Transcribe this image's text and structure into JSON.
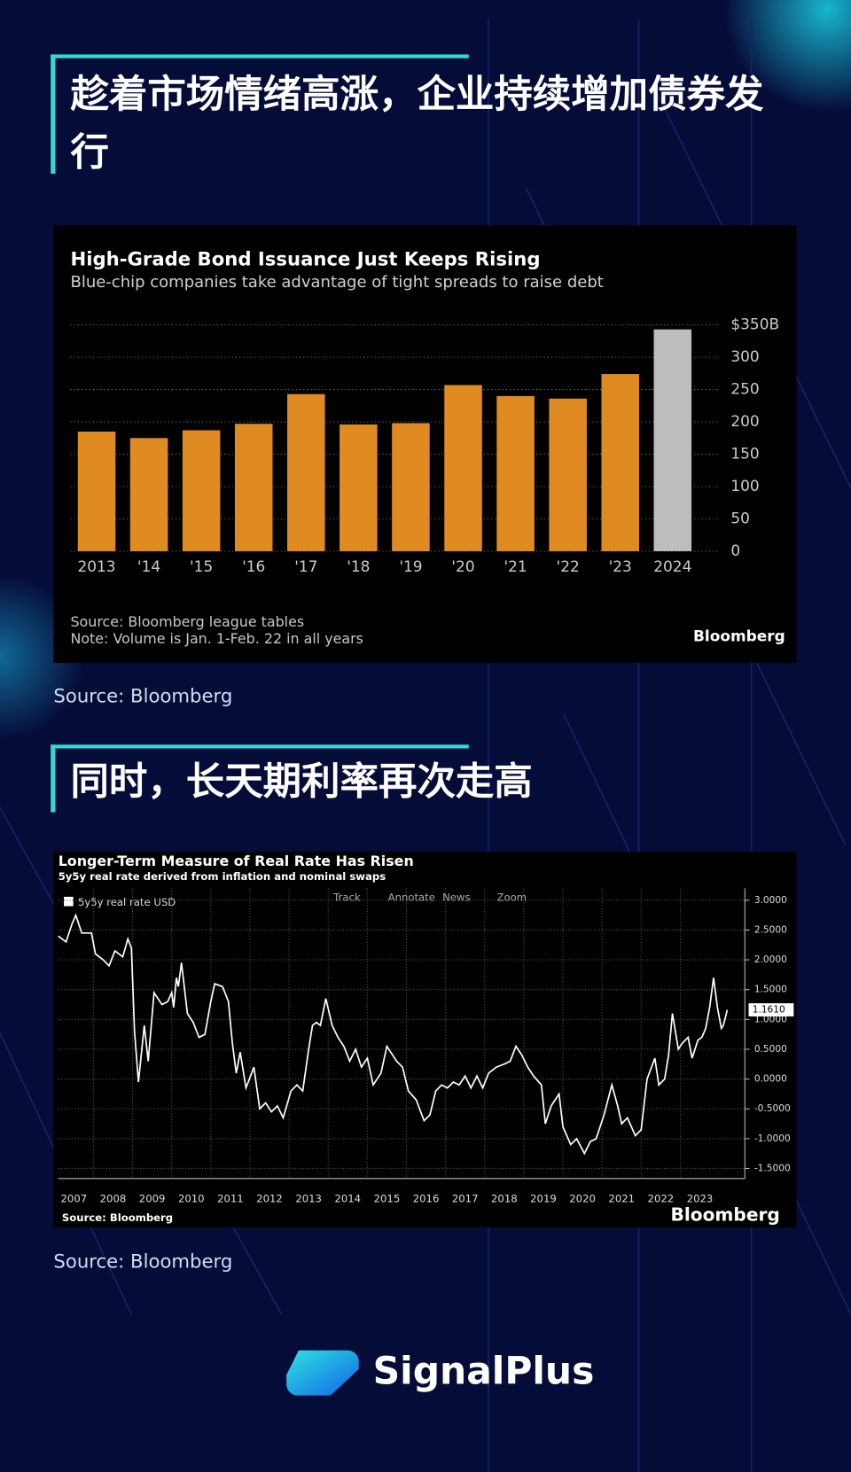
{
  "headings": [
    "趁着市场情绪高涨，企业持续增加债券发行",
    "同时，长天期利率再次走高"
  ],
  "captions": [
    "Source: Bloomberg",
    "Source: Bloomberg"
  ],
  "logo": "SignalPlus",
  "chart_data": [
    {
      "type": "bar",
      "title": "High-Grade Bond Issuance Just Keeps Rising",
      "subtitle": "Blue-chip companies take advantage of tight spreads to raise debt",
      "categories": [
        "2013",
        "'14",
        "'15",
        "'16",
        "'17",
        "'18",
        "'19",
        "'20",
        "'21",
        "'22",
        "'23",
        "2024"
      ],
      "values": [
        185,
        175,
        187,
        197,
        243,
        196,
        198,
        257,
        240,
        236,
        274,
        343
      ],
      "colors": [
        "#e08b22",
        "#e08b22",
        "#e08b22",
        "#e08b22",
        "#e08b22",
        "#e08b22",
        "#e08b22",
        "#e08b22",
        "#e08b22",
        "#e08b22",
        "#e08b22",
        "#bdbdbd"
      ],
      "ylim": [
        0,
        350
      ],
      "yticks": [
        0,
        50,
        100,
        150,
        200,
        250,
        300,
        {
          "value": 350,
          "label": "$350B"
        }
      ],
      "grid": true,
      "notes": [
        "Source: Bloomberg league tables",
        "Note: Volume is Jan. 1-Feb. 22 in all years"
      ],
      "brand": "Bloomberg"
    },
    {
      "type": "line",
      "title": "Longer-Term Measure of Real Rate Has Risen",
      "subtitle": "5y5y real rate derived from inflation and nominal swaps",
      "toolbar": [
        "Track",
        "Annotate",
        "News",
        "Zoom"
      ],
      "x": [
        2007.1,
        2007.3,
        2007.45,
        2007.55,
        2007.7,
        2007.95,
        2008.05,
        2008.25,
        2008.4,
        2008.55,
        2008.75,
        2008.88,
        2008.97,
        2009.05,
        2009.15,
        2009.3,
        2009.4,
        2009.55,
        2009.75,
        2009.9,
        2010.0,
        2010.05,
        2010.12,
        2010.17,
        2010.25,
        2010.4,
        2010.55,
        2010.7,
        2010.85,
        2011.0,
        2011.1,
        2011.3,
        2011.45,
        2011.55,
        2011.65,
        2011.75,
        2011.9,
        2012.1,
        2012.25,
        2012.4,
        2012.55,
        2012.7,
        2012.85,
        2013.05,
        2013.2,
        2013.35,
        2013.5,
        2013.6,
        2013.7,
        2013.8,
        2013.94,
        2014.1,
        2014.25,
        2014.4,
        2014.55,
        2014.7,
        2014.85,
        2015.0,
        2015.15,
        2015.35,
        2015.5,
        2015.6,
        2015.75,
        2015.9,
        2016.05,
        2016.25,
        2016.45,
        2016.6,
        2016.75,
        2016.9,
        2017.05,
        2017.2,
        2017.35,
        2017.5,
        2017.65,
        2017.8,
        2017.95,
        2018.1,
        2018.3,
        2018.5,
        2018.65,
        2018.8,
        2018.95,
        2019.1,
        2019.25,
        2019.45,
        2019.55,
        2019.7,
        2019.9,
        2020.0,
        2020.2,
        2020.35,
        2020.55,
        2020.7,
        2020.85,
        2021.05,
        2021.25,
        2021.4,
        2021.5,
        2021.65,
        2021.85,
        2022.0,
        2022.15,
        2022.35,
        2022.45,
        2022.6,
        2022.7,
        2022.8,
        2022.95,
        2023.05,
        2023.2,
        2023.3,
        2023.45,
        2023.55,
        2023.65,
        2023.75,
        2023.85,
        2023.95,
        2024.05,
        2024.1,
        2024.2
      ],
      "series": [
        {
          "name": "5y5y real rate USD",
          "color": "#ffffff",
          "current_value_label": "1.1610",
          "values": [
            2.4,
            2.3,
            2.6,
            2.75,
            2.45,
            2.45,
            2.1,
            2.0,
            1.9,
            2.15,
            2.05,
            2.35,
            2.2,
            0.8,
            -0.05,
            0.9,
            0.3,
            1.45,
            1.25,
            1.3,
            1.45,
            1.2,
            1.7,
            1.55,
            1.95,
            1.1,
            0.95,
            0.7,
            0.75,
            1.3,
            1.6,
            1.55,
            1.3,
            0.6,
            0.1,
            0.45,
            -0.15,
            0.2,
            -0.5,
            -0.4,
            -0.55,
            -0.45,
            -0.65,
            -0.2,
            -0.1,
            -0.2,
            0.5,
            0.9,
            0.95,
            0.9,
            1.35,
            0.9,
            0.7,
            0.55,
            0.3,
            0.5,
            0.2,
            0.35,
            -0.1,
            0.1,
            0.55,
            0.45,
            0.3,
            0.2,
            -0.2,
            -0.35,
            -0.7,
            -0.6,
            -0.2,
            -0.1,
            -0.15,
            -0.05,
            -0.1,
            0.05,
            -0.15,
            0.05,
            -0.15,
            0.1,
            0.2,
            0.25,
            0.3,
            0.55,
            0.4,
            0.2,
            0.05,
            -0.1,
            -0.75,
            -0.45,
            -0.25,
            -0.8,
            -1.1,
            -1.0,
            -1.25,
            -1.05,
            -1.0,
            -0.6,
            -0.1,
            -0.45,
            -0.75,
            -0.65,
            -0.95,
            -0.85,
            0.0,
            0.35,
            -0.1,
            0.0,
            0.4,
            1.1,
            0.5,
            0.6,
            0.7,
            0.35,
            0.65,
            0.7,
            0.85,
            1.2,
            1.7,
            1.2,
            0.85,
            0.9,
            1.161
          ]
        }
      ],
      "xlim": [
        2007.1,
        2024.65
      ],
      "ylim": [
        -1.7,
        3.2
      ],
      "xticks": [
        2007,
        2008,
        2009,
        2010,
        2011,
        2012,
        2013,
        2014,
        2015,
        2016,
        2017,
        2018,
        2019,
        2020,
        2021,
        2022,
        2023
      ],
      "yticks": [
        {
          "value": -1.5,
          "label": "-1.5000"
        },
        {
          "value": -1,
          "label": "-1.0000"
        },
        {
          "value": -0.5,
          "label": "-0.5000"
        },
        {
          "value": 0,
          "label": "0.0000"
        },
        {
          "value": 0.5,
          "label": "0.5000"
        },
        {
          "value": 1,
          "label": "1.0000"
        },
        {
          "value": 1.5,
          "label": "1.5000"
        },
        {
          "value": 2,
          "label": "2.0000"
        },
        {
          "value": 2.5,
          "label": "2.5000"
        },
        {
          "value": 3,
          "label": "3.0000"
        }
      ],
      "grid": true,
      "source": "Source: Bloomberg",
      "brand": "Bloomberg"
    }
  ]
}
